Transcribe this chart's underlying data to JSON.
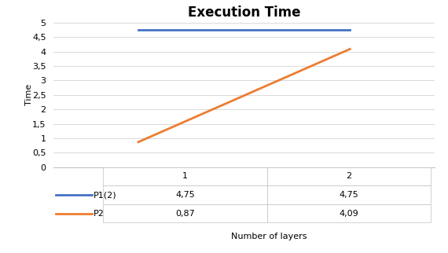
{
  "title": "Execution Time",
  "xlabel": "Number of layers",
  "ylabel": "Time",
  "x": [
    1,
    2
  ],
  "p1_2_values": [
    4.75,
    4.75
  ],
  "p2_values": [
    0.87,
    4.09
  ],
  "p1_2_label": "P1(2)",
  "p2_label": "P2",
  "p1_2_color": "#4472C4",
  "p2_color": "#ED7D31",
  "ylim": [
    0,
    5
  ],
  "yticks": [
    0,
    0.5,
    1,
    1.5,
    2,
    2.5,
    3,
    3.5,
    4,
    4.5,
    5
  ],
  "ytick_labels": [
    "0",
    "0,5",
    "1",
    "1,5",
    "2",
    "2,5",
    "3",
    "3,5",
    "4",
    "4,5",
    "5"
  ],
  "xticks": [
    1,
    2
  ],
  "table_col_labels": [
    "1",
    "2"
  ],
  "table_row1": [
    "4,75",
    "4,75"
  ],
  "table_row2": [
    "0,87",
    "4,09"
  ],
  "background_color": "#ffffff",
  "grid_color": "#d9d9d9",
  "line_width": 2.0,
  "title_fontsize": 12,
  "axis_label_fontsize": 8,
  "tick_fontsize": 8,
  "table_fontsize": 8,
  "spine_color": "#c0c0c0",
  "table_border_color": "#c0c0c0"
}
